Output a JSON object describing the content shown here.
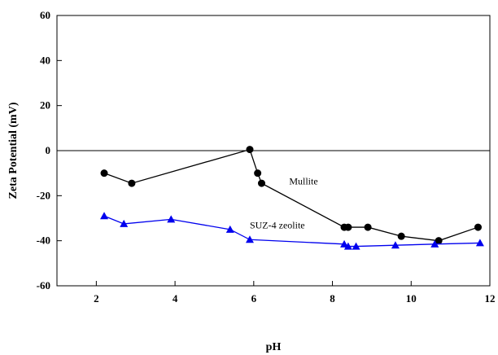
{
  "chart_data": {
    "type": "scatter",
    "title": "",
    "xlabel": "pH",
    "ylabel": "Zeta Potential (mV)",
    "xlim": [
      1,
      12
    ],
    "ylim": [
      -60,
      60
    ],
    "xticks": [
      2,
      4,
      6,
      8,
      10,
      12
    ],
    "yticks": [
      -60,
      -40,
      -20,
      0,
      20,
      40,
      60
    ],
    "grid": false,
    "zero_line": true,
    "series": [
      {
        "name": "Mullite",
        "color": "#000000",
        "marker": "circle",
        "x": [
          2.2,
          2.9,
          5.9,
          6.1,
          6.2,
          8.3,
          8.4,
          8.9,
          9.75,
          10.7,
          11.7
        ],
        "y": [
          -10,
          -14.5,
          0.5,
          -10,
          -14.5,
          -34,
          -34,
          -34,
          -38,
          -40,
          -34
        ]
      },
      {
        "name": "SUZ-4 zeolite",
        "color": "#0000ee",
        "marker": "triangle",
        "x": [
          2.2,
          2.7,
          3.9,
          5.4,
          5.9,
          8.3,
          8.4,
          8.6,
          9.6,
          10.6,
          11.75
        ],
        "y": [
          -29,
          -32.5,
          -30.5,
          -35,
          -39.5,
          -41.5,
          -42.5,
          -42.5,
          -42,
          -41.5,
          -41
        ]
      }
    ],
    "annotations": [
      {
        "text": "Mullite",
        "x": 6.9,
        "y": -15
      },
      {
        "text": "SUZ-4 zeolite",
        "x": 5.9,
        "y": -34.5
      }
    ]
  }
}
